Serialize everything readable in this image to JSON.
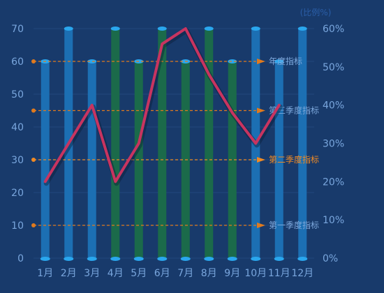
{
  "chart_data": {
    "type": "bar",
    "title": "",
    "categories": [
      "1月",
      "2月",
      "3月",
      "4月",
      "5月",
      "6月",
      "7月",
      "8月",
      "9月",
      "10月",
      "11月",
      "12月"
    ],
    "series": [
      {
        "type": "bar",
        "axis": "left",
        "values": [
          60,
          70,
          60,
          70,
          60,
          70,
          60,
          70,
          60,
          70,
          60,
          70
        ],
        "colors": [
          "#1c6fb3",
          "#1c6fb3",
          "#1c6fb3",
          "#1b6a4a",
          "#1b6a4a",
          "#1b6a4a",
          "#1b6a4a",
          "#1b6a4a",
          "#1b6a4a",
          "#1c6fb3",
          "#1c6fb3",
          "#1c6fb3"
        ]
      },
      {
        "type": "line",
        "axis": "right",
        "color": "#c83460",
        "values": [
          20,
          30,
          40,
          20,
          30,
          56,
          60,
          48,
          38,
          30,
          40,
          null
        ]
      }
    ],
    "left_axis": {
      "min": 0,
      "max": 70,
      "ticks": [
        0,
        10,
        20,
        30,
        40,
        50,
        60,
        70
      ]
    },
    "right_axis": {
      "label": "(比例%)",
      "min": 0,
      "max": 60,
      "ticks": [
        0,
        10,
        20,
        30,
        40,
        50,
        60
      ],
      "tick_labels": [
        "0%",
        "10%",
        "20%",
        "30%",
        "40%",
        "50%",
        "60%"
      ]
    },
    "reference_lines": [
      {
        "label": "年度指标",
        "value": 60,
        "axis": "left",
        "label_color": "#7ea9dd",
        "line_color": "#e07a1e"
      },
      {
        "label": "第三季度指标",
        "value": 45,
        "axis": "left",
        "label_color": "#7ea9dd",
        "line_color": "#e07a1e"
      },
      {
        "label": "第二季度指标",
        "value": 30,
        "axis": "left",
        "label_color": "#f08a24",
        "line_color": "#f08a24"
      },
      {
        "label": "第一季度指标",
        "value": 10,
        "axis": "left",
        "label_color": "#7ea9dd",
        "line_color": "#e07a1e"
      }
    ],
    "grid": true,
    "legend": "none"
  }
}
